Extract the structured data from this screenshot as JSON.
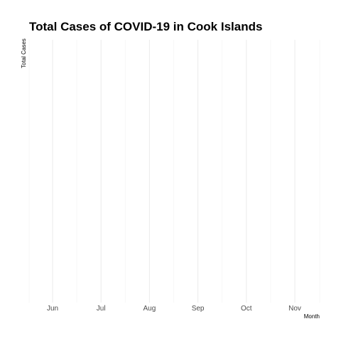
{
  "chart_data": {
    "type": "line",
    "title": "Total Cases of COVID-19 in Cook Islands",
    "xlabel": "Month",
    "ylabel": "Total Cases",
    "x_ticks": [
      "Jun",
      "Jul",
      "Aug",
      "Sep",
      "Oct",
      "Nov"
    ],
    "series": [
      {
        "x": [],
        "values": []
      }
    ],
    "grid": true,
    "colors": {
      "grid": "#ebebeb",
      "tick_text": "#4d4d4d",
      "title_text": "#000000"
    }
  }
}
